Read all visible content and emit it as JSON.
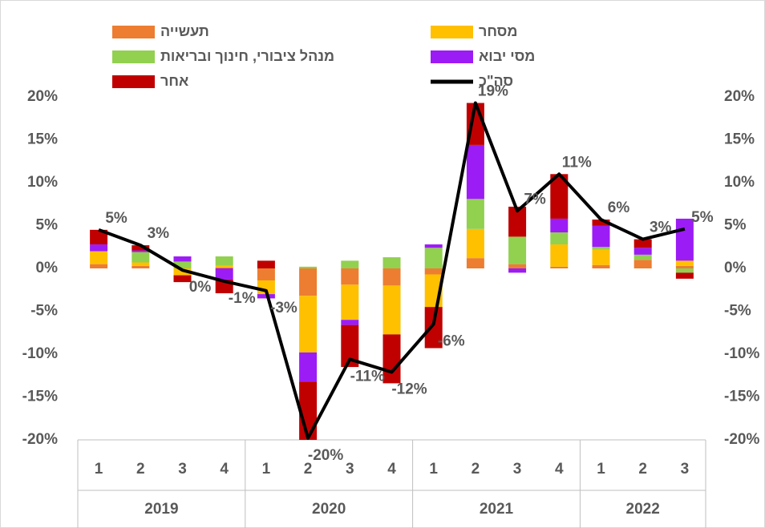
{
  "chart_data": {
    "type": "stacked-bar-line",
    "categories": [
      "1",
      "2",
      "3",
      "4",
      "1",
      "2",
      "3",
      "4",
      "1",
      "2",
      "3",
      "4",
      "1",
      "2",
      "3"
    ],
    "category_groups": [
      "2019",
      "2019",
      "2019",
      "2019",
      "2020",
      "2020",
      "2020",
      "2020",
      "2021",
      "2021",
      "2021",
      "2021",
      "2022",
      "2022",
      "2022"
    ],
    "series": [
      {
        "name": "תעשייה",
        "color": "#ED7D31",
        "values": [
          0.5,
          0.3,
          0,
          0.1,
          -1.4,
          -3.2,
          -1.9,
          -2.0,
          -0.7,
          1.2,
          0.5,
          0.2,
          0.4,
          1.0,
          0.3
        ]
      },
      {
        "name": "מסחר",
        "color": "#FFC000",
        "values": [
          1.5,
          0.4,
          -0.8,
          0.2,
          -1.6,
          -6.6,
          -4.1,
          -5.7,
          -3.8,
          3.4,
          0,
          2.6,
          1.8,
          0,
          0.6
        ]
      },
      {
        "name": "מנהל ציבורי, חינוך ובריאות",
        "color": "#92D050",
        "values": [
          0,
          1.2,
          0.8,
          1.1,
          0,
          0.2,
          0.9,
          1.3,
          2.4,
          3.5,
          3.2,
          1.4,
          0.3,
          0.6,
          -0.5
        ]
      },
      {
        "name": "מסי יבוא",
        "color": "#9C1CF5",
        "values": [
          0.8,
          0.2,
          0.6,
          -1.3,
          -0.5,
          -3.4,
          -0.6,
          0,
          0.4,
          6.3,
          -0.5,
          1.6,
          2.5,
          0.8,
          4.9
        ]
      },
      {
        "name": "אחר",
        "color": "#C00000",
        "values": [
          1.7,
          0.6,
          -0.8,
          -1.6,
          0.9,
          -6.8,
          -4.9,
          -5.7,
          -4.8,
          4.9,
          3.5,
          5.2,
          0.7,
          1.0,
          -0.7
        ]
      }
    ],
    "total": {
      "name": "סה\"כ",
      "color": "#000000",
      "values": [
        4.5,
        2.7,
        -0.2,
        -1.5,
        -2.6,
        -19.8,
        -10.6,
        -12.1,
        -6.5,
        19.3,
        6.7,
        11.0,
        5.7,
        3.4,
        4.6
      ],
      "value_labels": [
        "5%",
        "3%",
        "0%",
        "-1%",
        "-3%",
        "-20%",
        "-11%",
        "-12%",
        "-6%",
        "19%",
        "7%",
        "11%",
        "6%",
        "3%",
        "5%"
      ]
    },
    "ylim": [
      -20,
      20
    ],
    "yticks": [
      {
        "value": -20,
        "label": "-20%"
      },
      {
        "value": -15,
        "label": "-15%"
      },
      {
        "value": -10,
        "label": "-10%"
      },
      {
        "value": -5,
        "label": "-5%"
      },
      {
        "value": 0,
        "label": "0%"
      },
      {
        "value": 5,
        "label": "5%"
      },
      {
        "value": 10,
        "label": "10%"
      },
      {
        "value": 15,
        "label": "15%"
      },
      {
        "value": 20,
        "label": "20%"
      }
    ],
    "y2lim": [
      -20,
      20
    ],
    "y2ticks": [
      {
        "value": -20,
        "label": "-20%"
      },
      {
        "value": -15,
        "label": "-15%"
      },
      {
        "value": -10,
        "label": "-10%"
      },
      {
        "value": -5,
        "label": "-5%"
      },
      {
        "value": 0,
        "label": "0%"
      },
      {
        "value": 5,
        "label": "5%"
      },
      {
        "value": 10,
        "label": "10%"
      },
      {
        "value": 15,
        "label": "15%"
      },
      {
        "value": 20,
        "label": "20%"
      }
    ],
    "legend": "top"
  }
}
